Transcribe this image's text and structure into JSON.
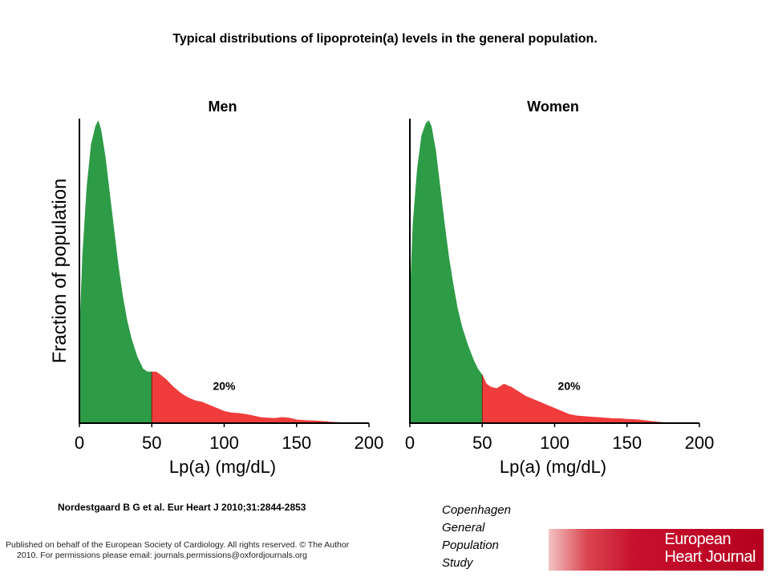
{
  "title": "Typical distributions of lipoprotein(a) levels in the general population.",
  "citation": "Nordestgaard B G et al. Eur Heart J 2010;31:2844-2853",
  "study_note": [
    "Copenhagen",
    "General",
    "Population",
    "Study"
  ],
  "footer": {
    "line1": "Published on behalf of the European Society of Cardiology. All rights reserved. © The Author",
    "line2": "2010. For permissions please email: journals.permissions@oxfordjournals.org"
  },
  "logo": {
    "line1": "European",
    "line2": "Heart Journal",
    "color": "#c8102e"
  },
  "colors": {
    "below_threshold": "#2e9b47",
    "above_threshold": "#f03c3c",
    "axis": "#000000"
  },
  "chart_data": [
    {
      "type": "area",
      "title": "Men",
      "xlabel": "Lp(a) (mg/dL)",
      "ylabel": "Fraction of population",
      "xlim": [
        0,
        200
      ],
      "xticks": [
        0,
        50,
        100,
        150,
        200
      ],
      "threshold": 50,
      "annotation": {
        "text": "20%",
        "x": 100,
        "y": 0.11
      },
      "x": [
        0,
        2,
        5,
        8,
        11,
        13,
        15,
        18,
        21,
        24,
        27,
        30,
        33,
        36,
        40,
        44,
        47,
        50,
        53,
        56,
        60,
        65,
        70,
        75,
        80,
        85,
        90,
        95,
        100,
        105,
        110,
        115,
        120,
        125,
        130,
        135,
        140,
        145,
        150,
        155,
        160,
        165,
        170,
        175,
        180,
        185,
        190
      ],
      "y": [
        0.3,
        0.55,
        0.78,
        0.92,
        0.98,
        1.0,
        0.97,
        0.88,
        0.76,
        0.64,
        0.52,
        0.42,
        0.34,
        0.28,
        0.22,
        0.18,
        0.17,
        0.17,
        0.17,
        0.16,
        0.145,
        0.12,
        0.1,
        0.085,
        0.075,
        0.07,
        0.06,
        0.05,
        0.04,
        0.035,
        0.033,
        0.03,
        0.025,
        0.02,
        0.018,
        0.017,
        0.02,
        0.018,
        0.012,
        0.01,
        0.009,
        0.008,
        0.006,
        0.004,
        0.003,
        0.002,
        0.001
      ]
    },
    {
      "type": "area",
      "title": "Women",
      "xlabel": "Lp(a) (mg/dL)",
      "ylabel": "",
      "xlim": [
        0,
        200
      ],
      "xticks": [
        0,
        50,
        100,
        150,
        200
      ],
      "threshold": 50,
      "annotation": {
        "text": "20%",
        "x": 110,
        "y": 0.11
      },
      "x": [
        0,
        2,
        5,
        8,
        11,
        13,
        15,
        18,
        21,
        24,
        27,
        30,
        33,
        36,
        40,
        44,
        47,
        50,
        53,
        56,
        60,
        65,
        70,
        75,
        80,
        85,
        90,
        95,
        100,
        105,
        110,
        115,
        120,
        125,
        130,
        135,
        140,
        145,
        150,
        155,
        160,
        165,
        170,
        175,
        180,
        185,
        190
      ],
      "y": [
        0.42,
        0.66,
        0.84,
        0.95,
        0.99,
        1.0,
        0.98,
        0.9,
        0.78,
        0.66,
        0.55,
        0.46,
        0.38,
        0.32,
        0.26,
        0.21,
        0.18,
        0.16,
        0.13,
        0.12,
        0.115,
        0.13,
        0.12,
        0.105,
        0.09,
        0.08,
        0.07,
        0.06,
        0.05,
        0.04,
        0.03,
        0.025,
        0.023,
        0.021,
        0.02,
        0.018,
        0.016,
        0.016,
        0.014,
        0.013,
        0.011,
        0.008,
        0.005,
        0.003,
        0.002,
        0.001,
        0.0
      ]
    }
  ]
}
